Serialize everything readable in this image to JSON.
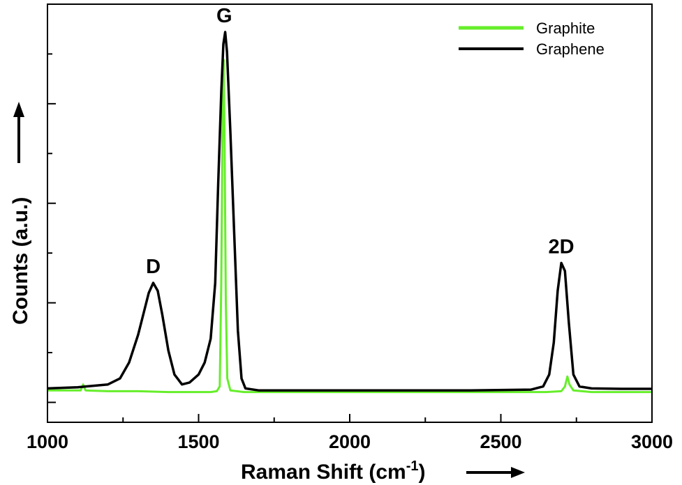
{
  "chart_data": {
    "type": "line",
    "xlabel": "Raman Shift",
    "xlabel_unit": "(cm",
    "xlabel_unit_sup": "-1",
    "xlabel_unit_close": ")",
    "ylabel": "Counts (a.u.)",
    "xlim": [
      1000,
      3000
    ],
    "ylim": [
      -0.05,
      1.0
    ],
    "x_ticks": [
      "1000",
      "1500",
      "2000",
      "2500",
      "3000"
    ],
    "y_tick_labels_shown": false,
    "grid": false,
    "legend": {
      "position": "top-right",
      "entries": [
        {
          "name": "Graphite",
          "color": "#66ee2a"
        },
        {
          "name": "Graphene",
          "color": "#000000"
        }
      ]
    },
    "annotations": [
      {
        "text": "D",
        "x": 1350,
        "y": 0.3
      },
      {
        "text": "G",
        "x": 1585,
        "y": 0.93
      },
      {
        "text": "2D",
        "x": 2700,
        "y": 0.35
      }
    ],
    "series": [
      {
        "name": "Graphite",
        "color": "#66ee2a",
        "x": [
          1000,
          1100,
          1110,
          1118,
          1126,
          1200,
          1300,
          1400,
          1500,
          1540,
          1560,
          1570,
          1575,
          1580,
          1583,
          1586,
          1590,
          1595,
          1605,
          1650,
          1700,
          1900,
          2100,
          2300,
          2500,
          2650,
          2700,
          2712,
          2720,
          2727,
          2740,
          2800,
          2900,
          3000
        ],
        "y": [
          0.03,
          0.03,
          0.03,
          0.045,
          0.03,
          0.028,
          0.028,
          0.026,
          0.026,
          0.026,
          0.028,
          0.04,
          0.3,
          0.78,
          0.86,
          0.66,
          0.25,
          0.06,
          0.03,
          0.026,
          0.026,
          0.026,
          0.026,
          0.026,
          0.026,
          0.026,
          0.028,
          0.04,
          0.065,
          0.045,
          0.03,
          0.026,
          0.026,
          0.026
        ]
      },
      {
        "name": "Graphene",
        "color": "#000000",
        "x": [
          1000,
          1100,
          1200,
          1240,
          1270,
          1300,
          1320,
          1335,
          1350,
          1365,
          1380,
          1400,
          1420,
          1445,
          1470,
          1500,
          1520,
          1540,
          1555,
          1565,
          1575,
          1582,
          1588,
          1594,
          1605,
          1618,
          1630,
          1642,
          1655,
          1700,
          1800,
          1900,
          2000,
          2100,
          2200,
          2400,
          2600,
          2640,
          2660,
          2675,
          2688,
          2700,
          2712,
          2725,
          2740,
          2760,
          2800,
          2900,
          3000
        ],
        "y": [
          0.035,
          0.038,
          0.045,
          0.06,
          0.1,
          0.17,
          0.23,
          0.275,
          0.3,
          0.28,
          0.22,
          0.13,
          0.07,
          0.045,
          0.05,
          0.07,
          0.1,
          0.16,
          0.3,
          0.55,
          0.78,
          0.9,
          0.93,
          0.88,
          0.68,
          0.42,
          0.18,
          0.06,
          0.035,
          0.03,
          0.03,
          0.03,
          0.03,
          0.03,
          0.03,
          0.03,
          0.032,
          0.04,
          0.07,
          0.15,
          0.28,
          0.35,
          0.33,
          0.2,
          0.07,
          0.04,
          0.035,
          0.034,
          0.034
        ]
      }
    ]
  }
}
